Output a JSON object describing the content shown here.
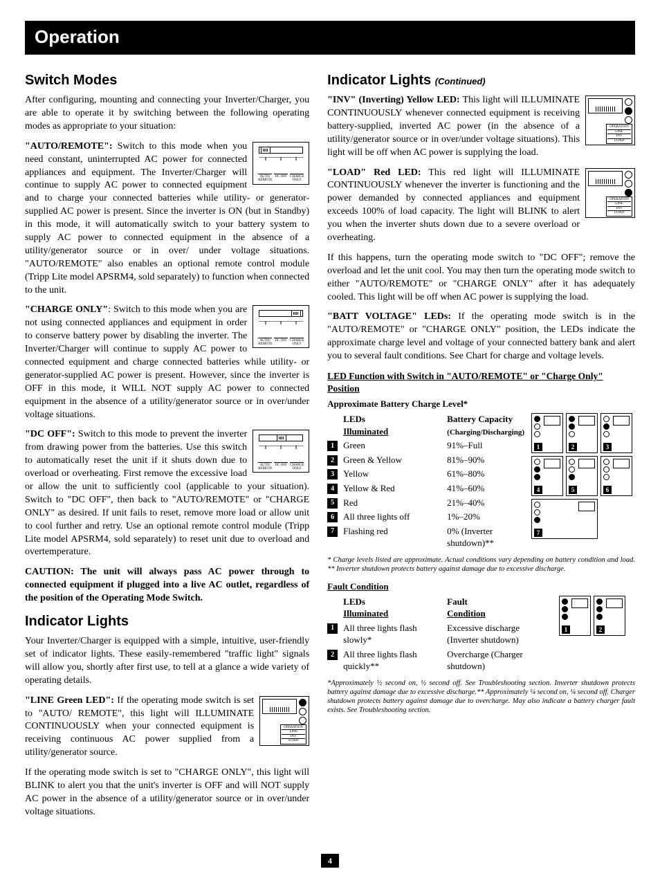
{
  "banner": "Operation",
  "left": {
    "switch_modes_head": "Switch Modes",
    "intro": "After configuring, mounting and connecting your Inverter/Charger, you are able to operate it by switching between the following operating modes as appropriate to your situation:",
    "auto_remote_label": "\"AUTO/REMOTE\":",
    "auto_remote_body": " Switch to this mode when you need constant, uninterrupted AC power for connected appliances and equipment. The Inverter/Charger will continue to supply AC power to connected equipment and to charge your connected batteries while utility- or generator-supplied AC power is present. Since the inverter is ON (but in Standby) in this mode, it will automatically switch to your battery system to supply AC power to connected equipment in the absence of a utility/generator source or in over/ under voltage situations. \"AUTO/REMOTE\" also enables an optional remote control module (Tripp Lite model APSRM4, sold separately) to function when connected to the unit.",
    "charge_only_label": "\"CHARGE ONLY\"",
    "charge_only_body": ": Switch to this mode when you are not using connected appliances and equipment in order to conserve battery power by disabling the inverter. The Inverter/Charger will continue to supply AC power to connected equipment and charge connected batteries while utility- or generator-supplied AC power is present. However, since the inverter is OFF in this mode, it WILL NOT supply AC power to connected equipment in the absence of a utility/generator source or in over/under voltage situations.",
    "dc_off_label": "\"DC OFF\":",
    "dc_off_body": " Switch to this mode to prevent the inverter from drawing power from the batteries. Use this switch to automatically reset the unit if it shuts down due to overload or overheating. First remove the excessive load or allow the unit to sufficiently cool (applicable to your situation). Switch to \"DC OFF\", then back to \"AUTO/REMOTE\" or \"CHARGE ONLY\" as desired. If unit fails to reset, remove more load or allow unit to cool further and retry. Use an optional remote control module (Tripp Lite model APSRM4, sold separately) to reset unit due to overload and overtemperature.",
    "caution": "CAUTION: The unit will always pass AC power through to connected equipment if plugged into a live AC outlet, regardless of the position of the Operating Mode Switch.",
    "indicator_head": "Indicator Lights",
    "indicator_intro": "Your Inverter/Charger is equipped with a simple, intuitive, user-friendly set of indicator lights. These easily-remembered \"traffic light\" signals will allow you, shortly after first use, to tell at a glance a wide variety of operating details.",
    "line_label": "\"LINE Green LED\":",
    "line_body": " If the operating mode switch is set to \"AUTO/ REMOTE\", this light will ILLUMINATE CONTINUOUSLY when your connected equipment is receiving continuous AC power supplied from a utility/generator source.",
    "line_body2": "If the operating mode switch is set to \"CHARGE ONLY\", this light will BLINK to alert you that the unit's inverter is OFF and will NOT supply AC power in the absence of a utility/generator source or in over/under voltage situations."
  },
  "right": {
    "cont_head": "Indicator Lights",
    "cont_label": "(Continued)",
    "inv_label": "\"INV\" (Inverting) Yellow LED:",
    "inv_body": " This light will ILLUMINATE CONTINUOUSLY whenever connected equipment is receiving battery-supplied, inverted AC power (in the absence of a utility/generator source or in over/under voltage situations). This light will be off when AC power is supplying the load.",
    "load_label": "\"LOAD\" Red LED:",
    "load_body": " This red light will ILLUMINATE CONTINUOUSLY whenever the inverter is functioning and the power demanded by connected appliances and equipment exceeds 100% of load capacity. The light will BLINK to alert you when the inverter shuts down due to a severe overload or overheating.",
    "load_body2": "If this happens, turn the operating mode switch to \"DC OFF\"; remove the overload and let the unit cool. You may then turn the operating mode switch to either \"AUTO/REMOTE\" or \"CHARGE ONLY\" after it has adequately cooled. This light will be off when AC power is supplying the load.",
    "batt_label": "\"BATT VOLTAGE\" LEDs:",
    "batt_body": " If the operating mode switch is in the \"AUTO/REMOTE\" or \"CHARGE ONLY\" position, the LEDs indicate the approximate charge level and voltage of your connected battery bank and alert you to several fault conditions. See Chart for charge and voltage levels.",
    "table1_head": "LED Function with Switch in \"AUTO/REMOTE\" or \"Charge Only\" Position",
    "table1_sub": "Approximate Battery Charge Level*",
    "th_leds": "LEDs",
    "th_illum": "Illuminated",
    "th_cap": "Battery Capacity",
    "th_cap_sub": "(Charging/Discharging)",
    "rows1": [
      {
        "n": "1",
        "led": "Green",
        "cap": "91%–Full"
      },
      {
        "n": "2",
        "led": "Green & Yellow",
        "cap": "81%–90%"
      },
      {
        "n": "3",
        "led": "Yellow",
        "cap": "61%–80%"
      },
      {
        "n": "4",
        "led": "Yellow & Red",
        "cap": "41%–60%"
      },
      {
        "n": "5",
        "led": "Red",
        "cap": "21%–40%"
      },
      {
        "n": "6",
        "led": "All three lights off",
        "cap": "1%–20%"
      },
      {
        "n": "7",
        "led": "Flashing red",
        "cap": "0% (Inverter shutdown)**"
      }
    ],
    "foot1": "* Charge levels listed are approximate. Actual conditions vary depending on battery condition and load. ** Inverter shutdown protects battery against damage due to excessive discharge.",
    "table2_head": "Fault Condition",
    "th_fault": "Fault",
    "th_cond": "Condition",
    "rows2": [
      {
        "n": "1",
        "led": "All three lights flash slowly*",
        "cap": "Excessive discharge (Inverter shutdown)"
      },
      {
        "n": "2",
        "led": "All three lights flash quickly**",
        "cap": "Overcharge (Charger shutdown)"
      }
    ],
    "foot2": "*Approximately ½ second on, ½ second off. See Troubleshooting section. Inverter shutdown protects battery against damage due to excessive discharge.** Approximately ¼ second on, ¼ second off. Charger shutdown protects battery against damage due to overcharge. May also indicate a battery charger fault exists. See Troubleshooting section."
  },
  "switch_labels": {
    "a": "AUTO/\nREMOTE",
    "b": "DC\nOFF",
    "c": "CHARGE\nONLY"
  },
  "panel_labels": {
    "op": "OPERATION",
    "l1": "LINE",
    "l2": "INV",
    "l3": "LOAD"
  },
  "page_number": "4"
}
